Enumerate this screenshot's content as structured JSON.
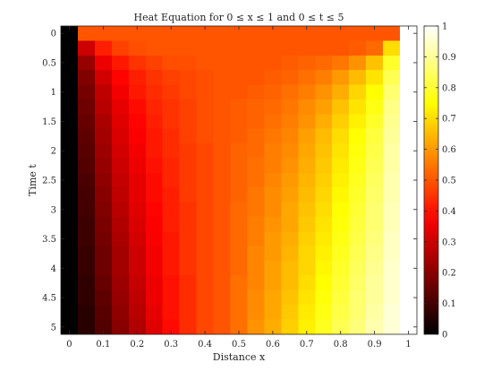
{
  "chart_data": {
    "type": "heatmap",
    "title": "Heat Equation for 0 ≤ x ≤ 1 and 0 ≤ t ≤ 5",
    "xlabel": "Distance x",
    "ylabel": "Time t",
    "x": [
      0,
      0.05,
      0.1,
      0.15,
      0.2,
      0.25,
      0.3,
      0.35,
      0.4,
      0.45,
      0.5,
      0.55,
      0.6,
      0.65,
      0.7,
      0.75,
      0.8,
      0.85,
      0.9,
      0.95,
      1
    ],
    "t": [
      0,
      0.25,
      0.5,
      0.75,
      1,
      1.25,
      1.5,
      1.75,
      2,
      2.25,
      2.5,
      2.75,
      3,
      3.25,
      3.5,
      3.75,
      4,
      4.25,
      4.5,
      4.75,
      5
    ],
    "x_dir": "normal",
    "y_dir": "reverse",
    "xlim": [
      -0.025,
      1.025
    ],
    "ylim": [
      -0.125,
      5.125
    ],
    "x_ticks": [
      0,
      0.1,
      0.2,
      0.3,
      0.4,
      0.5,
      0.6,
      0.7,
      0.8,
      0.9,
      1
    ],
    "x_tick_labels": [
      "0",
      "0.1",
      "0.2",
      "0.3",
      "0.4",
      "0.5",
      "0.6",
      "0.7",
      "0.8",
      "0.9",
      "1"
    ],
    "y_ticks": [
      0,
      0.5,
      1,
      1.5,
      2,
      2.5,
      3,
      3.5,
      4,
      4.5,
      5
    ],
    "y_tick_labels": [
      "0",
      "0.5",
      "1",
      "1.5",
      "2",
      "2.5",
      "3",
      "3.5",
      "4",
      "4.5",
      "5"
    ],
    "colormap": "hot",
    "clim": [
      0,
      1
    ],
    "colorbar_ticks": [
      0,
      0.1,
      0.2,
      0.3,
      0.4,
      0.5,
      0.6,
      0.7,
      0.8,
      0.9,
      1
    ],
    "colorbar_tick_labels": [
      "0",
      "0.1",
      "0.2",
      "0.3",
      "0.4",
      "0.5",
      "0.6",
      "0.7",
      "0.8",
      "0.9",
      "1"
    ],
    "grid": false,
    "colorbar_position": "right",
    "values": [
      [
        0,
        0.5,
        0.5,
        0.5,
        0.5,
        0.5,
        0.5,
        0.5,
        0.5,
        0.5,
        0.5,
        0.5,
        0.5,
        0.5,
        0.5,
        0.5,
        0.5,
        0.5,
        0.5,
        0.5,
        1
      ],
      [
        0,
        0.3,
        0.42,
        0.47,
        0.49,
        0.5,
        0.5,
        0.5,
        0.5,
        0.5,
        0.5,
        0.5,
        0.5,
        0.5,
        0.5,
        0.5,
        0.5,
        0.51,
        0.53,
        0.7,
        1
      ],
      [
        0,
        0.22,
        0.35,
        0.41,
        0.45,
        0.47,
        0.49,
        0.49,
        0.5,
        0.5,
        0.5,
        0.5,
        0.5,
        0.51,
        0.52,
        0.53,
        0.55,
        0.59,
        0.66,
        0.79,
        1
      ],
      [
        0,
        0.19,
        0.31,
        0.38,
        0.42,
        0.45,
        0.47,
        0.48,
        0.49,
        0.5,
        0.5,
        0.5,
        0.51,
        0.52,
        0.54,
        0.56,
        0.6,
        0.65,
        0.71,
        0.83,
        1
      ],
      [
        0,
        0.17,
        0.28,
        0.36,
        0.41,
        0.44,
        0.46,
        0.48,
        0.49,
        0.5,
        0.5,
        0.51,
        0.52,
        0.54,
        0.56,
        0.59,
        0.63,
        0.69,
        0.75,
        0.86,
        1
      ],
      [
        0,
        0.16,
        0.27,
        0.34,
        0.39,
        0.43,
        0.45,
        0.47,
        0.49,
        0.5,
        0.51,
        0.52,
        0.53,
        0.55,
        0.58,
        0.61,
        0.66,
        0.71,
        0.77,
        0.88,
        1
      ],
      [
        0,
        0.15,
        0.25,
        0.33,
        0.38,
        0.42,
        0.45,
        0.47,
        0.49,
        0.5,
        0.51,
        0.52,
        0.54,
        0.56,
        0.59,
        0.63,
        0.68,
        0.73,
        0.79,
        0.89,
        1
      ],
      [
        0,
        0.14,
        0.24,
        0.32,
        0.37,
        0.41,
        0.44,
        0.47,
        0.49,
        0.5,
        0.51,
        0.53,
        0.55,
        0.57,
        0.61,
        0.65,
        0.7,
        0.75,
        0.81,
        0.9,
        1
      ],
      [
        0,
        0.13,
        0.23,
        0.31,
        0.36,
        0.41,
        0.44,
        0.46,
        0.48,
        0.5,
        0.52,
        0.53,
        0.56,
        0.58,
        0.62,
        0.66,
        0.71,
        0.76,
        0.82,
        0.91,
        1
      ],
      [
        0,
        0.12,
        0.22,
        0.3,
        0.35,
        0.4,
        0.43,
        0.46,
        0.48,
        0.5,
        0.52,
        0.54,
        0.56,
        0.59,
        0.63,
        0.67,
        0.72,
        0.77,
        0.83,
        0.91,
        1
      ],
      [
        0,
        0.11,
        0.21,
        0.29,
        0.34,
        0.39,
        0.43,
        0.46,
        0.48,
        0.5,
        0.52,
        0.54,
        0.57,
        0.6,
        0.64,
        0.68,
        0.73,
        0.78,
        0.84,
        0.92,
        1
      ],
      [
        0,
        0.1,
        0.2,
        0.28,
        0.34,
        0.39,
        0.42,
        0.46,
        0.48,
        0.5,
        0.52,
        0.55,
        0.58,
        0.61,
        0.65,
        0.69,
        0.74,
        0.79,
        0.85,
        0.92,
        1
      ],
      [
        0,
        0.1,
        0.19,
        0.27,
        0.33,
        0.38,
        0.42,
        0.45,
        0.48,
        0.5,
        0.53,
        0.55,
        0.58,
        0.62,
        0.66,
        0.7,
        0.75,
        0.8,
        0.86,
        0.93,
        1
      ],
      [
        0,
        0.09,
        0.18,
        0.26,
        0.32,
        0.37,
        0.42,
        0.45,
        0.48,
        0.5,
        0.53,
        0.56,
        0.59,
        0.62,
        0.67,
        0.71,
        0.76,
        0.81,
        0.86,
        0.93,
        1
      ],
      [
        0,
        0.09,
        0.17,
        0.25,
        0.31,
        0.37,
        0.41,
        0.45,
        0.48,
        0.5,
        0.53,
        0.56,
        0.6,
        0.63,
        0.68,
        0.72,
        0.77,
        0.82,
        0.87,
        0.94,
        1
      ],
      [
        0,
        0.08,
        0.16,
        0.24,
        0.3,
        0.36,
        0.41,
        0.45,
        0.48,
        0.5,
        0.53,
        0.57,
        0.6,
        0.64,
        0.69,
        0.73,
        0.78,
        0.83,
        0.88,
        0.94,
        1
      ],
      [
        0,
        0.08,
        0.16,
        0.24,
        0.3,
        0.36,
        0.41,
        0.45,
        0.48,
        0.5,
        0.53,
        0.57,
        0.61,
        0.65,
        0.69,
        0.74,
        0.79,
        0.84,
        0.89,
        0.95,
        1
      ],
      [
        0,
        0.07,
        0.15,
        0.23,
        0.29,
        0.35,
        0.4,
        0.44,
        0.48,
        0.5,
        0.54,
        0.57,
        0.61,
        0.65,
        0.7,
        0.75,
        0.8,
        0.85,
        0.9,
        0.95,
        1
      ],
      [
        0,
        0.07,
        0.14,
        0.22,
        0.28,
        0.35,
        0.4,
        0.44,
        0.48,
        0.5,
        0.54,
        0.58,
        0.62,
        0.66,
        0.71,
        0.76,
        0.81,
        0.86,
        0.9,
        0.95,
        1
      ],
      [
        0,
        0.06,
        0.13,
        0.21,
        0.27,
        0.34,
        0.4,
        0.44,
        0.48,
        0.5,
        0.54,
        0.58,
        0.62,
        0.67,
        0.72,
        0.77,
        0.82,
        0.86,
        0.91,
        0.96,
        1
      ],
      [
        0,
        0.06,
        0.12,
        0.2,
        0.26,
        0.33,
        0.39,
        0.44,
        0.48,
        0.5,
        0.54,
        0.59,
        0.63,
        0.68,
        0.73,
        0.78,
        0.83,
        0.87,
        0.92,
        0.96,
        1
      ]
    ]
  }
}
